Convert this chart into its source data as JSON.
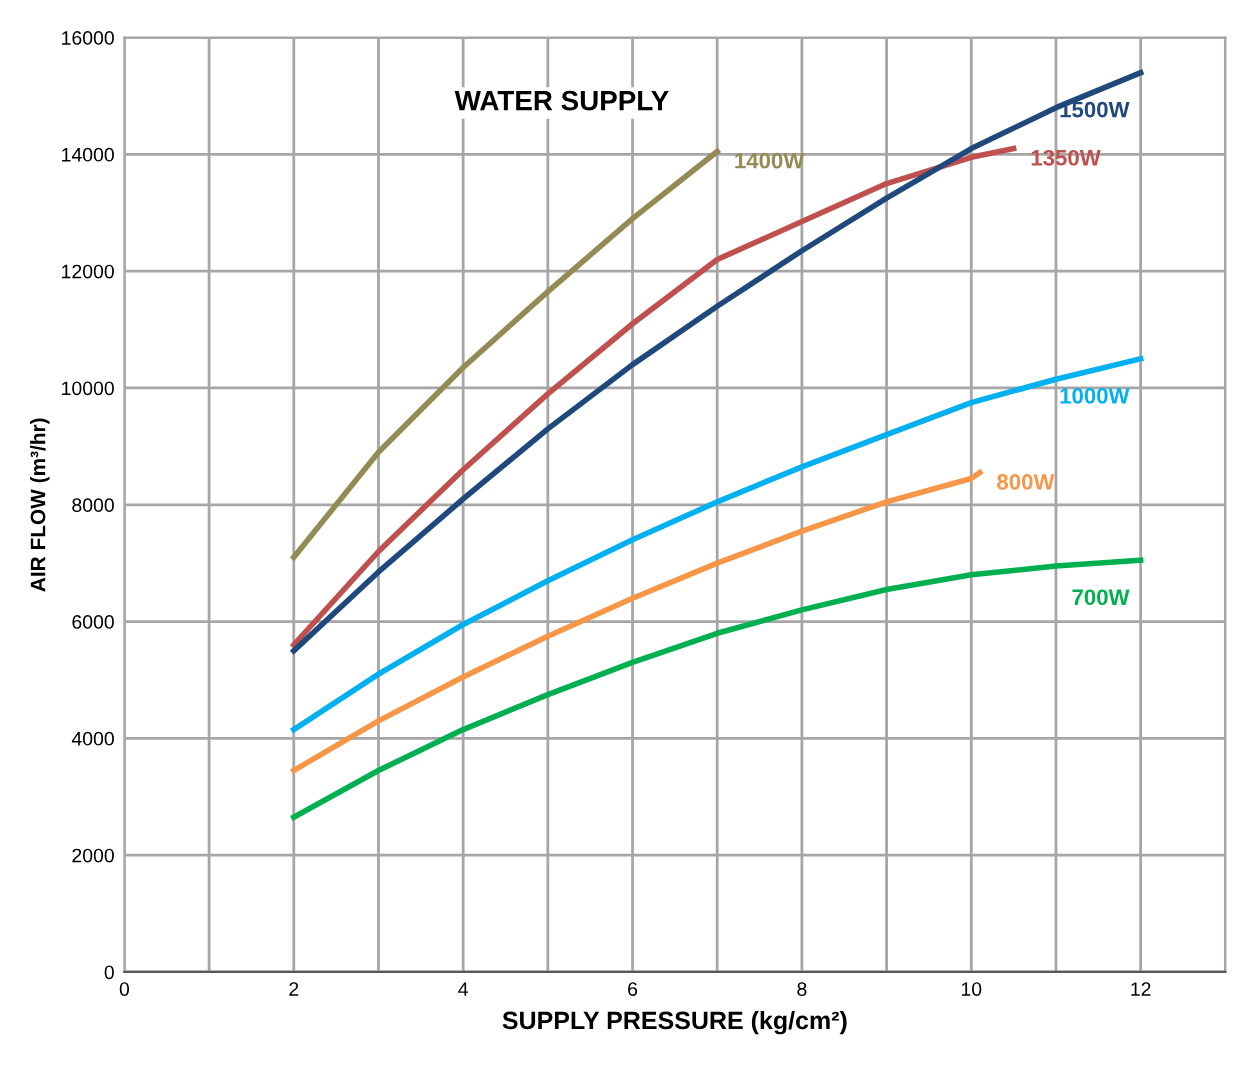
{
  "chart_data": {
    "type": "line",
    "title": "WATER SUPPLY",
    "xlabel": "SUPPLY PRESSURE (kg/cm²)",
    "ylabel": "AIR FLOW (m³/hr)",
    "xlim": [
      0,
      13
    ],
    "ylim": [
      0,
      16000
    ],
    "xticks": [
      0,
      {
        "value": 1,
        "label": null
      },
      2,
      {
        "value": 3,
        "label": null
      },
      4,
      {
        "value": 5,
        "label": null
      },
      6,
      {
        "value": 7,
        "label": null
      },
      8,
      {
        "value": 9,
        "label": null
      },
      10,
      {
        "value": 11,
        "label": null
      },
      12,
      {
        "value": 13,
        "label": null
      }
    ],
    "yticks": [
      0,
      2000,
      4000,
      6000,
      8000,
      10000,
      12000,
      14000,
      16000
    ],
    "grid": true,
    "marker": "none",
    "line_style": "solid",
    "series": [
      {
        "name": "1400W",
        "color": "#948a54",
        "x": [
          2,
          3,
          4,
          5,
          6,
          7
        ],
        "values": [
          7100,
          8900,
          10350,
          11650,
          12900,
          14050
        ]
      },
      {
        "name": "1350W",
        "color": "#c0504d",
        "x": [
          2,
          3,
          4,
          5,
          6,
          7,
          8,
          9,
          10,
          10.5
        ],
        "values": [
          5600,
          7200,
          8600,
          9900,
          11100,
          12200,
          12850,
          13500,
          13950,
          14100
        ]
      },
      {
        "name": "1500W",
        "color": "#1f497d",
        "x": [
          2,
          3,
          4,
          5,
          6,
          7,
          8,
          9,
          10,
          11,
          12
        ],
        "values": [
          5500,
          6850,
          8100,
          9300,
          10400,
          11400,
          12350,
          13250,
          14100,
          14800,
          15400
        ]
      },
      {
        "name": "1000W",
        "color": "#00b0f0",
        "x": [
          2,
          3,
          4,
          5,
          6,
          7,
          8,
          9,
          10,
          11,
          12
        ],
        "values": [
          4150,
          5100,
          5950,
          6700,
          7400,
          8050,
          8650,
          9200,
          9750,
          10150,
          10500
        ]
      },
      {
        "name": "800W",
        "color": "#f79646",
        "x": [
          2,
          3,
          4,
          5,
          6,
          7,
          8,
          9,
          10,
          10.1
        ],
        "values": [
          3450,
          4300,
          5050,
          5750,
          6400,
          7000,
          7550,
          8050,
          8450,
          8550
        ]
      },
      {
        "name": "700W",
        "color": "#00b050",
        "x": [
          2,
          3,
          4,
          5,
          6,
          7,
          8,
          9,
          10,
          11,
          12
        ],
        "values": [
          2650,
          3450,
          4150,
          4750,
          5300,
          5800,
          6200,
          6550,
          6800,
          6950,
          7050
        ]
      }
    ]
  }
}
